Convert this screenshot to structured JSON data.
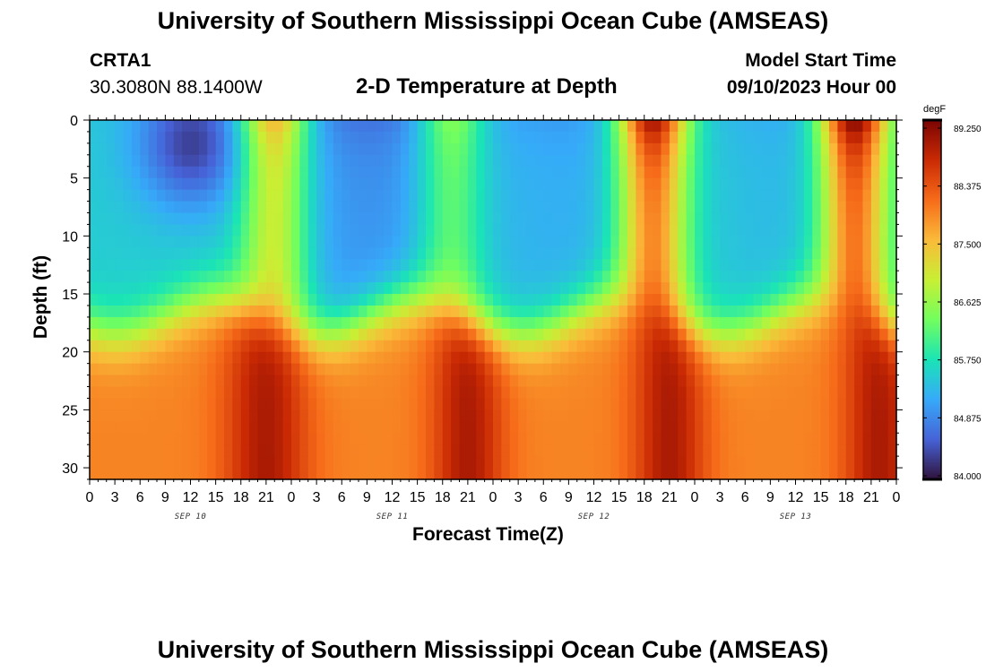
{
  "page": {
    "main_title": "University of Southern Mississippi Ocean Cube (AMSEAS)",
    "footer_title": "University of Southern Mississippi Ocean Cube (AMSEAS)"
  },
  "header": {
    "station_id": "CRTA1",
    "coordinates": "30.3080N  88.1400W",
    "plot_title": "2-D Temperature at Depth",
    "start_label": "Model Start Time",
    "start_value": "09/10/2023 Hour 00"
  },
  "colors": {
    "colormap": [
      "#30123b",
      "#4662d7",
      "#36aaf9",
      "#1ae4b6",
      "#72fe5e",
      "#c8ef34",
      "#faba39",
      "#f66b19",
      "#ca2a04",
      "#7a0403"
    ]
  },
  "chart_data": {
    "type": "heatmap",
    "title": "2-D Temperature at Depth",
    "xlabel": "Forecast Time(Z)",
    "ylabel": "Depth (ft)",
    "x_hours_range": [
      0,
      96
    ],
    "x_tick_labels": [
      "0",
      "3",
      "6",
      "9",
      "12",
      "15",
      "18",
      "21",
      "0",
      "3",
      "6",
      "9",
      "12",
      "15",
      "18",
      "21",
      "0",
      "3",
      "6",
      "9",
      "12",
      "15",
      "18",
      "21",
      "0",
      "3",
      "6",
      "9",
      "12",
      "15",
      "18",
      "21",
      "0"
    ],
    "date_labels": [
      {
        "text": "SEP 10",
        "hour": 12
      },
      {
        "text": "SEP 11",
        "hour": 36
      },
      {
        "text": "SEP 12",
        "hour": 60
      },
      {
        "text": "SEP 13",
        "hour": 84
      }
    ],
    "ylim": [
      0,
      31
    ],
    "y_ticks": [
      0,
      5,
      10,
      15,
      20,
      25,
      30
    ],
    "colorbar": {
      "unit": "degF",
      "min": 84.0,
      "max": 89.25,
      "ticks": [
        "89.250",
        "88.375",
        "87.500",
        "86.625",
        "85.750",
        "84.875",
        "84.000"
      ]
    },
    "warm_hour_pattern_note_hours": [
      22,
      43,
      67,
      91
    ],
    "description_values": {
      "surface_warm_peaks_hours": [
        22,
        43,
        67,
        91
      ],
      "surface_warm_peak_temps": [
        87.8,
        86.8,
        89.0,
        89.2
      ],
      "cold_core_hour": 12,
      "cold_core_depth_ft": 3,
      "cold_core_temp": 84.0,
      "thermocline_depth_ft": 17,
      "bottom_hot_hours": [
        21,
        45,
        69,
        93
      ],
      "bottom_hot_temp": 89.0
    }
  }
}
